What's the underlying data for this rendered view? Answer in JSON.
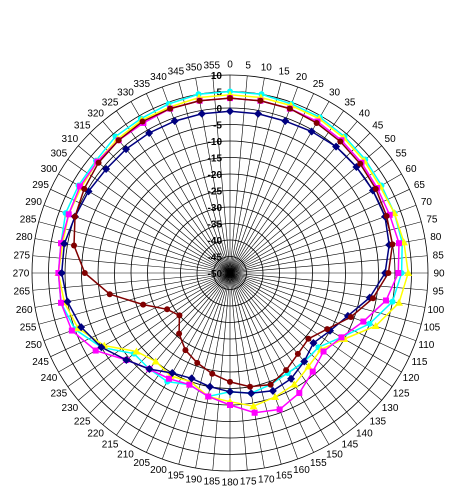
{
  "chart_data": {
    "type": "polar-line",
    "title": "",
    "angle_unit": "degrees",
    "angle_ticks": [
      0,
      5,
      10,
      15,
      20,
      25,
      30,
      35,
      40,
      45,
      50,
      55,
      60,
      65,
      70,
      75,
      80,
      85,
      90,
      95,
      100,
      105,
      110,
      115,
      120,
      125,
      130,
      135,
      140,
      145,
      150,
      155,
      160,
      165,
      170,
      175,
      180,
      185,
      190,
      195,
      200,
      205,
      210,
      215,
      220,
      225,
      230,
      235,
      240,
      245,
      250,
      255,
      260,
      265,
      270,
      275,
      280,
      285,
      290,
      295,
      300,
      305,
      310,
      315,
      320,
      325,
      330,
      335,
      340,
      345,
      350,
      355
    ],
    "radial_ticks": [
      10,
      5,
      0,
      -5,
      -10,
      -15,
      -20,
      -25,
      -30,
      -35,
      -40,
      -45,
      -50
    ],
    "radial_range": [
      -50,
      10
    ],
    "grid": true,
    "legend": "none",
    "series": [
      {
        "color": "#00ffff",
        "marker": "circle",
        "angles": [
          0,
          10,
          20,
          30,
          40,
          50,
          60,
          70,
          80,
          90,
          100,
          110,
          120,
          130,
          140,
          150,
          160,
          170,
          180,
          190,
          200,
          210,
          220,
          230,
          240,
          250,
          260,
          270,
          280,
          290,
          300,
          310,
          320,
          330,
          340,
          350
        ],
        "values": [
          5,
          5,
          4.5,
          4.5,
          4,
          3.5,
          3,
          3,
          3,
          2,
          0,
          -5,
          -11,
          -15,
          -15,
          -15,
          -14,
          -13,
          -14,
          -12,
          -14,
          -12,
          -12,
          -12,
          -5,
          0,
          2,
          2,
          2,
          3,
          3,
          3,
          4,
          4,
          4.5,
          5
        ]
      },
      {
        "color": "#ffff00",
        "marker": "triangle",
        "angles": [
          0,
          10,
          20,
          30,
          40,
          50,
          60,
          70,
          80,
          90,
          100,
          110,
          120,
          130,
          140,
          150,
          160,
          170,
          180,
          190,
          200,
          210,
          220,
          230,
          240,
          250,
          260,
          270,
          280,
          290,
          300,
          310,
          320,
          330,
          340,
          350
        ],
        "values": [
          4,
          4,
          4,
          4,
          3.5,
          3,
          2.5,
          3,
          3.5,
          4,
          2,
          -3,
          -10,
          -14,
          -13,
          -11,
          -10,
          -9,
          -11,
          -12,
          -15,
          -14,
          -15,
          -13,
          -6,
          -1,
          1,
          2,
          1.5,
          2,
          2,
          2.5,
          3,
          3.5,
          3.5,
          4
        ]
      },
      {
        "color": "#ff00ff",
        "marker": "square",
        "angles": [
          0,
          10,
          20,
          30,
          40,
          50,
          60,
          70,
          80,
          90,
          100,
          110,
          120,
          130,
          140,
          150,
          160,
          170,
          180,
          190,
          200,
          210,
          220,
          230,
          240,
          250,
          260,
          270,
          280,
          290,
          300,
          310,
          320,
          330,
          340,
          350
        ],
        "values": [
          3,
          3,
          3,
          3,
          2.5,
          2,
          1.5,
          1.5,
          2,
          1,
          -2,
          -7,
          -11,
          -13,
          -11,
          -8,
          -6,
          -7,
          -10,
          -12,
          -14,
          -13,
          -12,
          -9,
          -3,
          1,
          2,
          2,
          2,
          2,
          2.5,
          2.5,
          2.5,
          2.5,
          3,
          3
        ]
      },
      {
        "color": "#000080",
        "marker": "diamond",
        "angles": [
          0,
          10,
          20,
          30,
          40,
          50,
          60,
          70,
          80,
          90,
          100,
          110,
          120,
          130,
          140,
          150,
          160,
          170,
          180,
          190,
          200,
          210,
          220,
          230,
          240,
          250,
          260,
          270,
          280,
          290,
          300,
          310,
          320,
          330,
          340,
          350
        ],
        "values": [
          -1,
          -1,
          -1,
          -0.5,
          0,
          0,
          0,
          0,
          -1,
          -3,
          -7,
          -12,
          -15,
          -17,
          -15,
          -13,
          -12,
          -13,
          -14,
          -15,
          -16,
          -15,
          -12,
          -9,
          -5,
          -2,
          0,
          1,
          1,
          0,
          -0.5,
          -1,
          -1,
          -1,
          -1,
          -1
        ]
      },
      {
        "color": "#800000",
        "marker": "circle",
        "angles": [
          0,
          10,
          20,
          30,
          40,
          50,
          60,
          70,
          80,
          90,
          100,
          110,
          120,
          130,
          140,
          150,
          160,
          170,
          180,
          190,
          200,
          210,
          220,
          230,
          240,
          250,
          260,
          270,
          280,
          290,
          300,
          310,
          320,
          330,
          340,
          350
        ],
        "values": [
          3,
          3,
          3,
          2.5,
          2,
          1.5,
          1,
          0.5,
          0,
          -2,
          -6,
          -11,
          -16,
          -19,
          -18,
          -16,
          -14,
          -15,
          -17,
          -19,
          -21,
          -23,
          -26,
          -30,
          -28,
          -22,
          -13,
          -6,
          -2,
          0,
          1,
          2,
          2.5,
          3,
          3,
          3
        ]
      }
    ]
  }
}
